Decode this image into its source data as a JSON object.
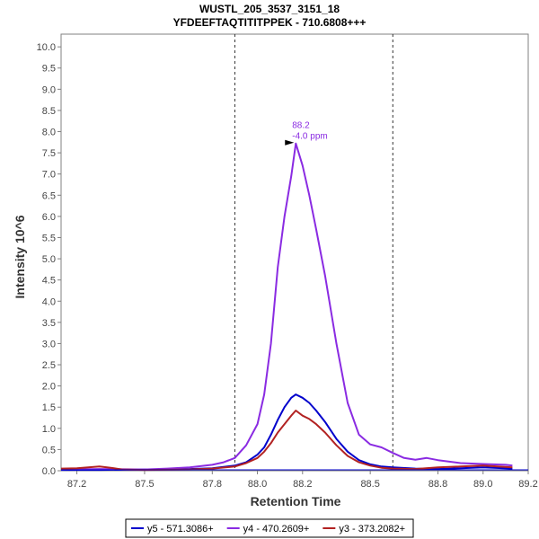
{
  "chart_data": {
    "type": "line",
    "title": "WUSTL_205_3537_3151_18",
    "subtitle": "YFDEEFTAQTITITPPEK - 710.6808+++",
    "xlabel": "Retention Time",
    "ylabel": "Intensity 10^6",
    "xlim": [
      87.13,
      89.2
    ],
    "ylim": [
      0,
      10.3
    ],
    "xticks": [
      87.2,
      87.5,
      87.8,
      88.0,
      88.2,
      88.5,
      88.8,
      89.0,
      89.2
    ],
    "yticks": [
      0.0,
      0.5,
      1.0,
      1.5,
      2.0,
      2.5,
      3.0,
      3.5,
      4.0,
      4.5,
      5.0,
      5.5,
      6.0,
      6.5,
      7.0,
      7.5,
      8.0,
      8.5,
      9.0,
      9.5,
      10.0
    ],
    "grid": false,
    "legend_position": "bottom",
    "boundaries": [
      87.9,
      88.6
    ],
    "annotation": {
      "x": 88.17,
      "y": 7.72,
      "line1": "88.2",
      "line2": "-4.0 ppm",
      "color": "#8a2be2"
    },
    "series": [
      {
        "name": "y5 - 571.3086+",
        "color": "#0000cc",
        "x": [
          87.13,
          87.3,
          87.5,
          87.7,
          87.8,
          87.9,
          87.95,
          88.0,
          88.03,
          88.06,
          88.09,
          88.12,
          88.15,
          88.17,
          88.2,
          88.23,
          88.26,
          88.3,
          88.35,
          88.4,
          88.45,
          88.5,
          88.55,
          88.6,
          88.7,
          88.8,
          88.9,
          89.0,
          89.13
        ],
        "y": [
          0.02,
          0.02,
          0.03,
          0.04,
          0.06,
          0.12,
          0.2,
          0.38,
          0.55,
          0.85,
          1.2,
          1.5,
          1.72,
          1.8,
          1.72,
          1.6,
          1.42,
          1.15,
          0.75,
          0.45,
          0.25,
          0.15,
          0.1,
          0.08,
          0.05,
          0.04,
          0.06,
          0.08,
          0.05
        ]
      },
      {
        "name": "y4 - 470.2609+",
        "color": "#8a2be2",
        "x": [
          87.13,
          87.3,
          87.5,
          87.6,
          87.7,
          87.8,
          87.85,
          87.9,
          87.95,
          88.0,
          88.03,
          88.06,
          88.09,
          88.12,
          88.15,
          88.17,
          88.2,
          88.23,
          88.26,
          88.3,
          88.35,
          88.4,
          88.45,
          88.5,
          88.55,
          88.6,
          88.65,
          88.7,
          88.75,
          88.8,
          88.9,
          89.0,
          89.1,
          89.13
        ],
        "y": [
          0.03,
          0.04,
          0.03,
          0.05,
          0.08,
          0.14,
          0.2,
          0.3,
          0.6,
          1.1,
          1.8,
          3.0,
          4.8,
          6.0,
          6.95,
          7.72,
          7.2,
          6.5,
          5.7,
          4.6,
          3.0,
          1.6,
          0.85,
          0.62,
          0.55,
          0.42,
          0.3,
          0.26,
          0.3,
          0.25,
          0.18,
          0.16,
          0.14,
          0.12
        ]
      },
      {
        "name": "y3 - 373.2082+",
        "color": "#b22222",
        "x": [
          87.13,
          87.2,
          87.25,
          87.3,
          87.35,
          87.4,
          87.5,
          87.7,
          87.8,
          87.9,
          87.95,
          88.0,
          88.03,
          88.06,
          88.09,
          88.12,
          88.15,
          88.17,
          88.2,
          88.23,
          88.26,
          88.3,
          88.35,
          88.4,
          88.45,
          88.5,
          88.55,
          88.6,
          88.7,
          88.8,
          88.9,
          89.0,
          89.13
        ],
        "y": [
          0.05,
          0.06,
          0.08,
          0.1,
          0.07,
          0.03,
          0.02,
          0.03,
          0.05,
          0.1,
          0.18,
          0.3,
          0.45,
          0.65,
          0.9,
          1.1,
          1.3,
          1.42,
          1.3,
          1.22,
          1.1,
          0.9,
          0.6,
          0.35,
          0.2,
          0.12,
          0.07,
          0.05,
          0.04,
          0.08,
          0.1,
          0.12,
          0.08
        ]
      }
    ]
  }
}
